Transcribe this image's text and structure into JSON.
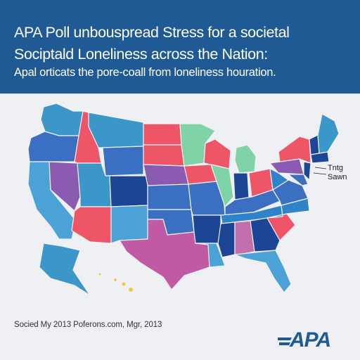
{
  "header": {
    "title_line1": "APA Poll unbouspread Stress for a societal",
    "title_line2": "Sociptald Loneliness across the Nation:",
    "subtitle": "Apal orticats the pore-coall from loneliness houration."
  },
  "map": {
    "callout_line1": "Tntg",
    "callout_line2": "Sawn",
    "colors": {
      "red": "#ee5566",
      "green": "#7fd3a6",
      "purple": "#8a5bb0",
      "magenta": "#c05aa4",
      "pink": "#c36fae",
      "navy": "#1d4596",
      "blue": "#3a6fc1",
      "mid_blue": "#2f83c8",
      "light_blue": "#4aa2d6",
      "teal": "#3b97c7",
      "gold": "#f3c43d"
    }
  },
  "footer": {
    "source": "Socied My 2013 Poferons.com, Mgr, 2013",
    "logo": "APA"
  }
}
